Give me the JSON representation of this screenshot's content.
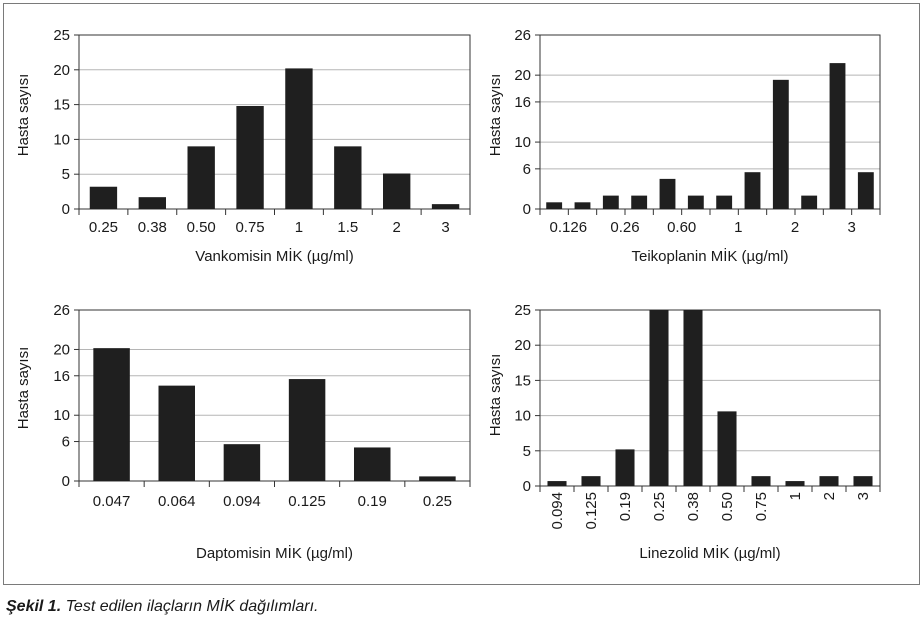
{
  "caption": {
    "label": "Şekil 1.",
    "text": "Test edilen ilaçların MİK dağılımları."
  },
  "colors": {
    "bar": "#1f1f1f",
    "grid": "#b5b5b5",
    "axis": "#333333"
  },
  "chart_data": [
    {
      "type": "bar",
      "xlabel": "Vankomisin MİK (µg/ml)",
      "ylabel": "Hasta sayısı",
      "categories": [
        "0.25",
        "0.38",
        "0.50",
        "0.75",
        "1",
        "1.5",
        "2",
        "3"
      ],
      "values": [
        3.2,
        1.7,
        9,
        14.8,
        20.2,
        9,
        5.1,
        0.7
      ],
      "ylim": [
        0,
        25
      ],
      "yticks": [
        "0",
        "5",
        "10",
        "15",
        "20",
        "25"
      ],
      "grid": true
    },
    {
      "type": "bar",
      "xlabel": "Teikoplanin MİK (µg/ml)",
      "ylabel": "Hasta sayısı",
      "categories": [
        "0.126",
        "",
        "0.26",
        "",
        "0.60",
        "",
        "1",
        "",
        "2",
        "",
        "3",
        ""
      ],
      "values": [
        1,
        1,
        2,
        2,
        4.5,
        2,
        2,
        5.5,
        19.3,
        2,
        21.8,
        5.5
      ],
      "ylim": [
        0,
        26
      ],
      "yticks": [
        "0",
        "6",
        "10",
        "16",
        "20",
        "26"
      ],
      "grid": true
    },
    {
      "type": "bar",
      "xlabel": "Daptomisin  MİK (µg/ml)",
      "ylabel": "Hasta sayısı",
      "categories": [
        "0.047",
        "0.064",
        "0.094",
        "0.125",
        "0.19",
        "0.25"
      ],
      "values": [
        20.2,
        14.5,
        5.6,
        15.5,
        5.1,
        0.7
      ],
      "ylim": [
        0,
        26
      ],
      "yticks": [
        "0",
        "6",
        "10",
        "16",
        "20",
        "26"
      ],
      "grid": true
    },
    {
      "type": "bar",
      "xlabel": "Linezolid MİK (µg/ml)",
      "ylabel": "Hasta sayısı",
      "categories": [
        "0.094",
        "0.125",
        "0.19",
        "0.25",
        "0.38",
        "0.50",
        "0.75",
        "1",
        "2",
        "3"
      ],
      "values": [
        0.7,
        1.4,
        5.2,
        25,
        25,
        10.6,
        1.4,
        0.7,
        1.4,
        1.4
      ],
      "ylim": [
        0,
        25
      ],
      "yticks": [
        "0",
        "5",
        "10",
        "15",
        "20",
        "25"
      ],
      "grid": true
    }
  ]
}
